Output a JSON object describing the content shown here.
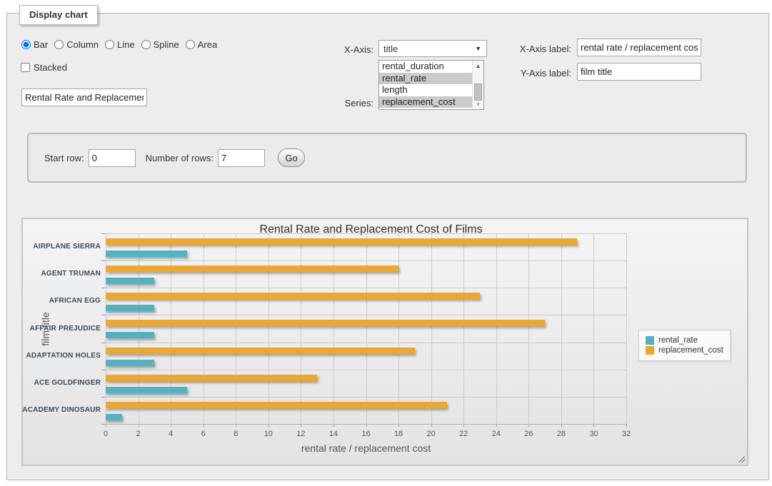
{
  "panel": {
    "legend": "Display chart"
  },
  "chart_type": {
    "options": [
      {
        "label": "Bar",
        "selected": true
      },
      {
        "label": "Column",
        "selected": false
      },
      {
        "label": "Line",
        "selected": false
      },
      {
        "label": "Spline",
        "selected": false
      },
      {
        "label": "Area",
        "selected": false
      }
    ]
  },
  "stacked": {
    "label": "Stacked",
    "checked": false
  },
  "title_input": {
    "value": "Rental Rate and Replacement Cost of Films"
  },
  "x_axis": {
    "label": "X-Axis:",
    "value": "title"
  },
  "series_select": {
    "label": "Series:",
    "options": [
      {
        "label": "rental_duration",
        "selected": false
      },
      {
        "label": "rental_rate",
        "selected": true
      },
      {
        "label": "length",
        "selected": false
      },
      {
        "label": "replacement_cost",
        "selected": true
      }
    ]
  },
  "x_axis_label": {
    "label": "X-Axis label:",
    "value": "rental rate / replacement cost"
  },
  "y_axis_label": {
    "label": "Y-Axis label:",
    "value": "film title"
  },
  "rows_form": {
    "start_row_label": "Start row:",
    "start_row_value": "0",
    "num_rows_label": "Number of rows:",
    "num_rows_value": "7",
    "go_label": "Go"
  },
  "chart_data": {
    "type": "bar",
    "title": "Rental Rate and Replacement Cost of Films",
    "categories": [
      "AIRPLANE SIERRA",
      "AGENT TRUMAN",
      "AFRICAN EGG",
      "AFFAIR PREJUDICE",
      "ADAPTATION HOLES",
      "ACE GOLDFINGER",
      "ACADEMY DINOSAUR"
    ],
    "series": [
      {
        "name": "rental_rate",
        "color": "#52b1c3",
        "values": [
          4.99,
          2.99,
          2.99,
          2.99,
          2.99,
          4.99,
          0.99
        ]
      },
      {
        "name": "replacement_cost",
        "color": "#eca72c",
        "values": [
          28.99,
          17.99,
          22.99,
          26.99,
          18.99,
          12.99,
          20.99
        ]
      }
    ],
    "xlabel": "rental rate / replacement cost",
    "ylabel": "film title",
    "xlim": [
      0,
      32
    ],
    "xticks": [
      0,
      2,
      4,
      6,
      8,
      10,
      12,
      14,
      16,
      18,
      20,
      22,
      24,
      26,
      28,
      30,
      32
    ],
    "grid": true,
    "legend_position": "right",
    "orientation": "horizontal"
  }
}
